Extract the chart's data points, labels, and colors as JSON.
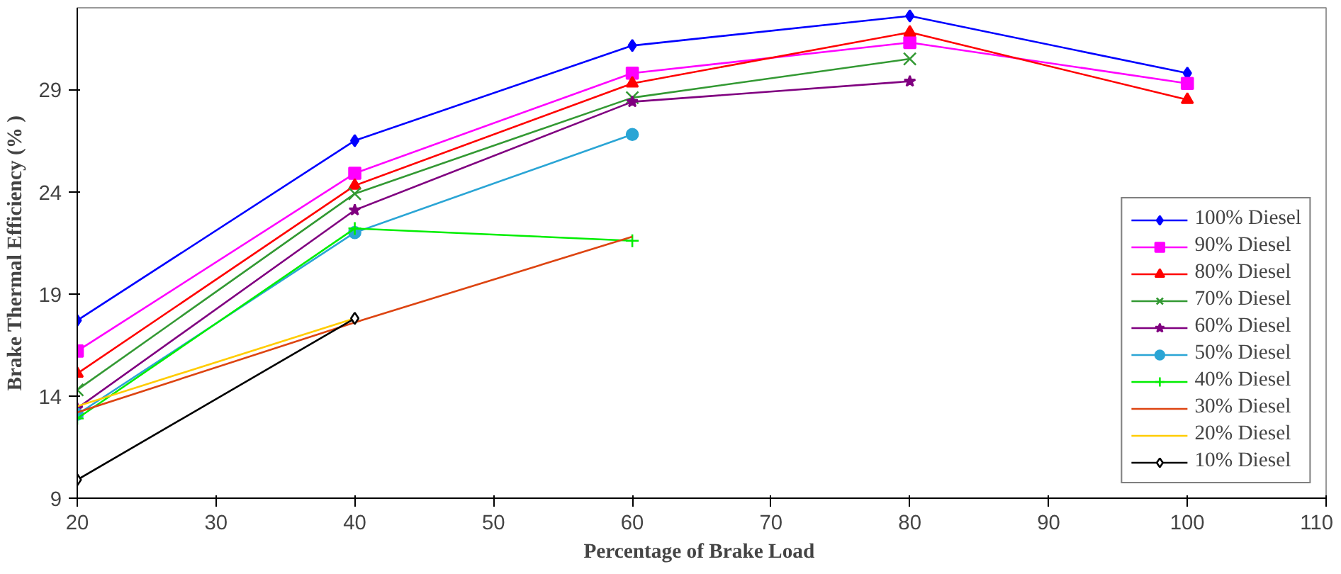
{
  "chart_data": {
    "type": "line",
    "xlabel": "Percentage of  Brake Load",
    "ylabel": "Brake Thermal Efficiency (% )",
    "x": [
      20,
      40,
      60,
      80,
      100
    ],
    "series": [
      {
        "name": "100% Diesel",
        "color": "#0000ff",
        "marker": "diamond",
        "values": [
          17.7,
          26.5,
          31.15,
          32.6,
          29.8
        ]
      },
      {
        "name": "90% Diesel",
        "color": "#ff00ff",
        "marker": "square",
        "values": [
          16.2,
          24.9,
          29.8,
          31.3,
          29.3
        ]
      },
      {
        "name": "80% Diesel",
        "color": "#ff0000",
        "marker": "triangle",
        "values": [
          15.1,
          24.3,
          29.3,
          31.8,
          28.5
        ]
      },
      {
        "name": "70% Diesel",
        "color": "#339933",
        "marker": "x",
        "values": [
          14.3,
          23.9,
          28.6,
          30.5,
          null
        ]
      },
      {
        "name": "60% Diesel",
        "color": "#800080",
        "marker": "star",
        "values": [
          13.4,
          23.1,
          28.4,
          29.4,
          null
        ]
      },
      {
        "name": "50% Diesel",
        "color": "#2aa5d5",
        "marker": "circle",
        "values": [
          13.1,
          22.0,
          26.8,
          null,
          null
        ]
      },
      {
        "name": "40% Diesel",
        "color": "#00ee00",
        "marker": "cross",
        "values": [
          12.9,
          22.2,
          21.6,
          null,
          null
        ]
      },
      {
        "name": "30% Diesel",
        "color": "#dd4411",
        "marker": "none",
        "values": [
          13.2,
          17.6,
          21.8,
          null,
          null
        ]
      },
      {
        "name": "20% Diesel",
        "color": "#ffcc00",
        "marker": "none",
        "values": [
          13.5,
          17.8,
          null,
          null,
          null
        ]
      },
      {
        "name": "10% Diesel",
        "color": "#000000",
        "marker": "diamond_open",
        "values": [
          9.9,
          17.8,
          null,
          null,
          null
        ]
      }
    ],
    "xlim": [
      20,
      110
    ],
    "xticks": [
      20,
      30,
      40,
      50,
      60,
      70,
      80,
      90,
      100,
      110
    ],
    "ylim": [
      9,
      33
    ],
    "yticks": [
      9,
      14,
      19,
      24,
      29
    ],
    "grid": false,
    "legend": "bottom right"
  }
}
